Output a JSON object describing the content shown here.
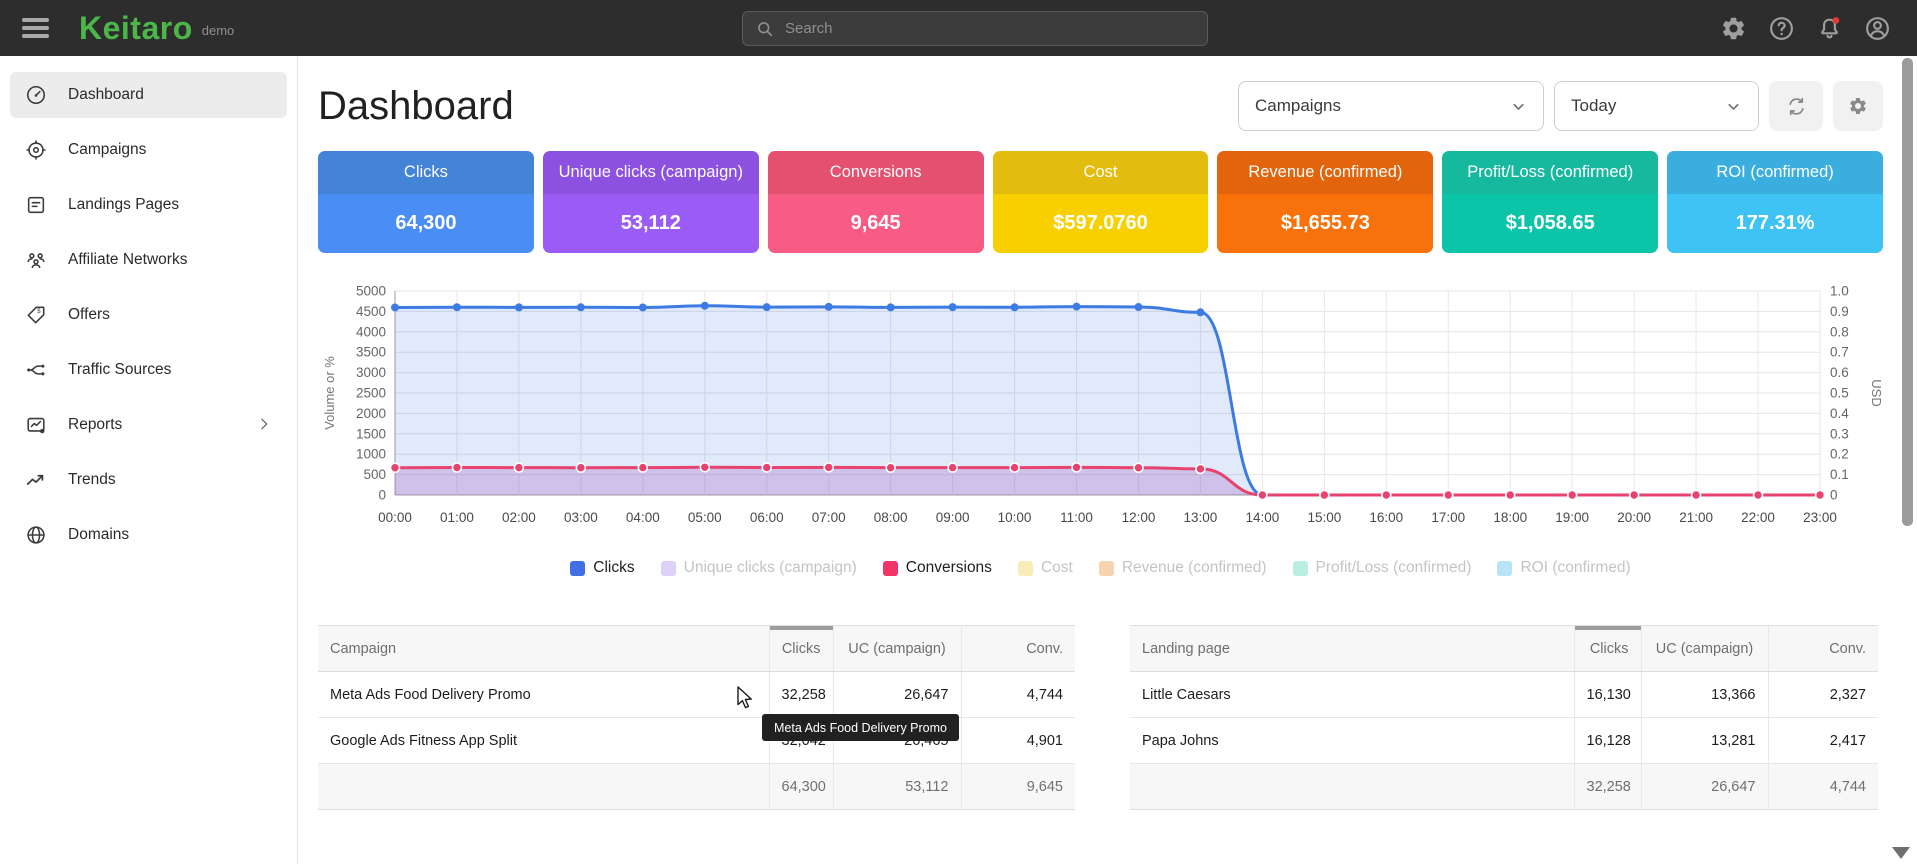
{
  "topbar": {
    "logo": "Keitaro",
    "env": "demo",
    "search_placeholder": "Search"
  },
  "sidebar": {
    "items": [
      {
        "label": "Dashboard",
        "active": true
      },
      {
        "label": "Campaigns",
        "active": false
      },
      {
        "label": "Landings Pages",
        "active": false
      },
      {
        "label": "Affiliate Networks",
        "active": false
      },
      {
        "label": "Offers",
        "active": false
      },
      {
        "label": "Traffic Sources",
        "active": false
      },
      {
        "label": "Reports",
        "active": false,
        "has_submenu": true
      },
      {
        "label": "Trends",
        "active": false
      },
      {
        "label": "Domains",
        "active": false
      }
    ]
  },
  "header": {
    "title": "Dashboard",
    "entity_filter": "Campaigns",
    "date_range": "Today"
  },
  "cards": [
    {
      "label": "Clicks",
      "value": "64,300",
      "color_top": "#4484d6",
      "color_bottom": "#4a8ef5"
    },
    {
      "label": "Unique clicks (campaign)",
      "value": "53,112",
      "color_top": "#8c51e0",
      "color_bottom": "#9b5cf6"
    },
    {
      "label": "Conversions",
      "value": "9,645",
      "color_top": "#e4506f",
      "color_bottom": "#f85c84"
    },
    {
      "label": "Cost",
      "value": "$597.0760",
      "color_top": "#e2bd10",
      "color_bottom": "#f8d000"
    },
    {
      "label": "Revenue (confirmed)",
      "value": "$1,655.73",
      "color_top": "#e2650e",
      "color_bottom": "#f8710a"
    },
    {
      "label": "Profit/Loss (confirmed)",
      "value": "$1,058.65",
      "color_top": "#16b89e",
      "color_bottom": "#0cc5a9"
    },
    {
      "label": "ROI (confirmed)",
      "value": "177.31%",
      "color_top": "#3aafdf",
      "color_bottom": "#3fc2f4"
    }
  ],
  "chart_data": {
    "type": "line",
    "x": [
      "00:00",
      "01:00",
      "02:00",
      "03:00",
      "04:00",
      "05:00",
      "06:00",
      "07:00",
      "08:00",
      "09:00",
      "10:00",
      "11:00",
      "12:00",
      "13:00",
      "14:00",
      "15:00",
      "16:00",
      "17:00",
      "18:00",
      "19:00",
      "20:00",
      "21:00",
      "22:00",
      "23:00"
    ],
    "series": [
      {
        "name": "Clicks",
        "color": "#3d7be2",
        "fill": "rgba(61,123,226,0.16)",
        "marker": "solid",
        "values": [
          4597,
          4603,
          4599,
          4601,
          4596,
          4640,
          4604,
          4612,
          4599,
          4605,
          4601,
          4618,
          4607,
          4478,
          0,
          0,
          0,
          0,
          0,
          0,
          0,
          0,
          0,
          0
        ]
      },
      {
        "name": "Conversions",
        "color": "#e8436e",
        "fill": "rgba(160,90,190,0.28)",
        "marker": "ring",
        "values": [
          668,
          674,
          671,
          669,
          672,
          679,
          673,
          676,
          670,
          672,
          671,
          677,
          669,
          640,
          0,
          0,
          0,
          0,
          0,
          0,
          0,
          0,
          0,
          0
        ]
      }
    ],
    "y_left": {
      "label": "Volume or %",
      "min": 0,
      "max": 5000,
      "step": 500
    },
    "y_right": {
      "label": "USD",
      "min": 0,
      "max": 1.0,
      "step": 0.1
    },
    "grid": true,
    "legend_position": "bottom",
    "legend": [
      {
        "label": "Clicks",
        "color": "#4170e4",
        "active": true
      },
      {
        "label": "Unique clicks (campaign)",
        "color": "#ddd1f7",
        "active": false
      },
      {
        "label": "Conversions",
        "color": "#f23568",
        "active": true
      },
      {
        "label": "Cost",
        "color": "#f8edb9",
        "active": false
      },
      {
        "label": "Revenue (confirmed)",
        "color": "#f7d3b0",
        "active": false
      },
      {
        "label": "Profit/Loss (confirmed)",
        "color": "#b9eee1",
        "active": false
      },
      {
        "label": "ROI (confirmed)",
        "color": "#b9e3f6",
        "active": false
      }
    ]
  },
  "campaign_table": {
    "headers": {
      "name": "Campaign",
      "clicks": "Clicks",
      "uc": "UC (campaign)",
      "conv": "Conv."
    },
    "sorted_column": "Clicks",
    "rows": [
      {
        "name": "Meta Ads Food Delivery Promo",
        "clicks": "32,258",
        "uc": "26,647",
        "conv": "4,744"
      },
      {
        "name": "Google Ads Fitness App Split",
        "clicks": "32,042",
        "uc": "26,465",
        "conv": "4,901"
      }
    ],
    "totals": {
      "clicks": "64,300",
      "uc": "53,112",
      "conv": "9,645"
    }
  },
  "landing_table": {
    "headers": {
      "name": "Landing page",
      "clicks": "Clicks",
      "uc": "UC (campaign)",
      "conv": "Conv."
    },
    "sorted_column": "Clicks",
    "rows": [
      {
        "name": "Little Caesars",
        "clicks": "16,130",
        "uc": "13,366",
        "conv": "2,327"
      },
      {
        "name": "Papa Johns",
        "clicks": "16,128",
        "uc": "13,281",
        "conv": "2,417"
      }
    ],
    "totals": {
      "clicks": "32,258",
      "uc": "26,647",
      "conv": "4,744"
    }
  },
  "tooltip": {
    "text": "Meta Ads Food Delivery Promo"
  },
  "colors": {
    "topbar_bg": "#2d2d2d",
    "logo_green": "#4cb649",
    "notification_red": "#e53935",
    "active_nav_bg": "#ececec"
  }
}
